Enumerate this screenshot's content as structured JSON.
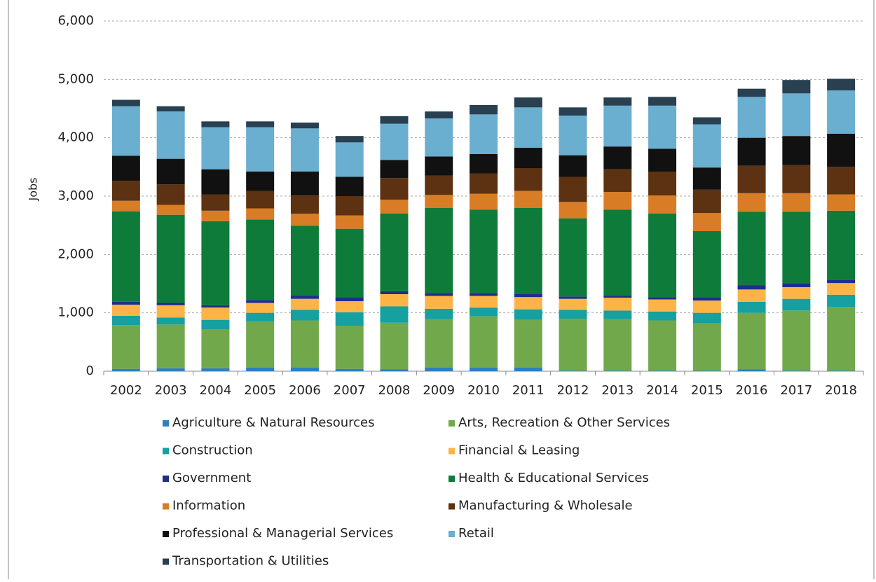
{
  "chart_data": {
    "type": "stacked_bar",
    "y_label": "Jobs",
    "categories": [
      "2002",
      "2003",
      "2004",
      "2005",
      "2006",
      "2007",
      "2008",
      "2009",
      "2010",
      "2011",
      "2012",
      "2013",
      "2014",
      "2015",
      "2016",
      "2017",
      "2018"
    ],
    "series": [
      {
        "name": "Agriculture & Natural Resources",
        "color": "#2e7fbf",
        "values": [
          40,
          50,
          50,
          60,
          60,
          40,
          30,
          60,
          60,
          60,
          10,
          10,
          10,
          10,
          30,
          10,
          10
        ]
      },
      {
        "name": "Arts, Recreation & Other Services",
        "color": "#72a84c",
        "values": [
          750,
          750,
          670,
          790,
          810,
          740,
          800,
          830,
          880,
          820,
          890,
          880,
          860,
          810,
          970,
          1030,
          1090
        ]
      },
      {
        "name": "Construction",
        "color": "#16a0a0",
        "values": [
          160,
          120,
          160,
          150,
          180,
          230,
          280,
          180,
          150,
          180,
          150,
          150,
          150,
          180,
          190,
          200,
          210
        ]
      },
      {
        "name": "Financial & Leasing",
        "color": "#fbb445",
        "values": [
          190,
          210,
          210,
          170,
          190,
          190,
          210,
          220,
          200,
          210,
          190,
          220,
          210,
          210,
          210,
          200,
          200
        ]
      },
      {
        "name": "Government",
        "color": "#1f2d8c",
        "values": [
          50,
          40,
          40,
          50,
          50,
          70,
          50,
          50,
          50,
          50,
          40,
          30,
          40,
          50,
          70,
          60,
          50
        ]
      },
      {
        "name": "Health & Educational Services",
        "color": "#0f7b3b",
        "values": [
          1550,
          1510,
          1440,
          1380,
          1200,
          1170,
          1330,
          1460,
          1430,
          1480,
          1340,
          1480,
          1430,
          1140,
          1260,
          1230,
          1190
        ]
      },
      {
        "name": "Information",
        "color": "#d97c26",
        "values": [
          180,
          170,
          180,
          190,
          210,
          230,
          240,
          220,
          270,
          290,
          280,
          300,
          310,
          310,
          320,
          320,
          280
        ]
      },
      {
        "name": "Manufacturing & Wholesale",
        "color": "#5c3212",
        "values": [
          340,
          350,
          280,
          300,
          310,
          330,
          370,
          330,
          350,
          390,
          430,
          390,
          410,
          400,
          470,
          480,
          470
        ]
      },
      {
        "name": "Professional & Managerial Services",
        "color": "#111111",
        "values": [
          430,
          440,
          430,
          330,
          410,
          330,
          310,
          330,
          330,
          350,
          370,
          390,
          390,
          380,
          480,
          500,
          570
        ]
      },
      {
        "name": "Retail",
        "color": "#6aaed0",
        "values": [
          850,
          810,
          720,
          760,
          740,
          590,
          620,
          650,
          680,
          690,
          680,
          700,
          740,
          740,
          700,
          730,
          740
        ]
      },
      {
        "name": "Transportation & Utilities",
        "color": "#28404f",
        "values": [
          110,
          90,
          100,
          100,
          100,
          110,
          130,
          120,
          160,
          170,
          140,
          140,
          150,
          120,
          140,
          230,
          200
        ]
      }
    ],
    "ylim": [
      0,
      6000
    ],
    "yticks": [
      0,
      {
        "value": 1000,
        "label": "1,000"
      },
      {
        "value": 2000,
        "label": "2,000"
      },
      {
        "value": 3000,
        "label": "3,000"
      },
      {
        "value": 4000,
        "label": "4,000"
      },
      {
        "value": 5000,
        "label": "5,000"
      },
      {
        "value": 6000,
        "label": "6,000"
      }
    ],
    "grid": true,
    "legend": "bottom"
  }
}
